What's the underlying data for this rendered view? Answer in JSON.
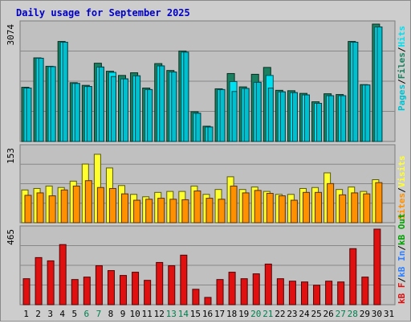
{
  "title": "Daily usage for September 2025",
  "colors": {
    "hits": "#00e0f0",
    "files": "#1a8060",
    "pages": "#00c0d0",
    "visits": "#ffff30",
    "sites": "#ff9000",
    "kbf": "#e01010",
    "kbin": "#3080ff",
    "kbout": "#00a000",
    "plot_bg": "#c0c0c0",
    "frame_bg": "#cdcdcd",
    "title": "#0000c8",
    "weekend_label": "#007f4f"
  },
  "chart_data": [
    {
      "type": "bar",
      "name": "hits-files-pages",
      "axis_max_label": "3074",
      "ylim": [
        0,
        3074
      ],
      "legend": [
        "Pages",
        "/",
        "Files",
        "/",
        "Hits"
      ],
      "categories": [
        "1",
        "2",
        "3",
        "4",
        "5",
        "6",
        "7",
        "8",
        "9",
        "10",
        "11",
        "12",
        "13",
        "14",
        "15",
        "16",
        "17",
        "18",
        "19",
        "20",
        "21",
        "22",
        "23",
        "24",
        "25",
        "26",
        "27",
        "28",
        "29",
        "30",
        "31"
      ],
      "series": [
        {
          "name": "Hits",
          "values": [
            1400,
            2180,
            1960,
            2600,
            1520,
            1440,
            1950,
            1810,
            1640,
            1720,
            1360,
            1980,
            1820,
            2340,
            740,
            380,
            1360,
            1570,
            1390,
            1550,
            1730,
            1300,
            1280,
            1220,
            1000,
            1200,
            1200,
            2600,
            1480,
            3000,
            0
          ]
        },
        {
          "name": "Files",
          "values": [
            1420,
            2190,
            1970,
            2620,
            1540,
            1470,
            2050,
            1840,
            1730,
            1800,
            1400,
            2040,
            1860,
            2370,
            780,
            400,
            1380,
            1780,
            1430,
            1760,
            1940,
            1340,
            1330,
            1260,
            1040,
            1250,
            1230,
            2620,
            1490,
            3074,
            0
          ]
        },
        {
          "name": "Pages",
          "values": [
            1400,
            2180,
            1960,
            2600,
            1520,
            1440,
            1950,
            1700,
            1640,
            1720,
            1360,
            1980,
            1820,
            2340,
            740,
            380,
            1360,
            1310,
            1390,
            1550,
            1400,
            1300,
            1280,
            1220,
            1000,
            1200,
            1200,
            2600,
            1480,
            3000,
            0
          ]
        }
      ]
    },
    {
      "type": "bar",
      "name": "visits-sites",
      "axis_max_label": "153",
      "ylim": [
        0,
        153
      ],
      "legend": [
        "Sites",
        "/",
        "Visits"
      ],
      "categories": [
        "1",
        "2",
        "3",
        "4",
        "5",
        "6",
        "7",
        "8",
        "9",
        "10",
        "11",
        "12",
        "13",
        "14",
        "15",
        "16",
        "17",
        "18",
        "19",
        "20",
        "21",
        "22",
        "23",
        "24",
        "25",
        "26",
        "27",
        "28",
        "29",
        "30",
        "31"
      ],
      "series": [
        {
          "name": "Visits",
          "values": [
            67,
            70,
            75,
            72,
            85,
            120,
            140,
            112,
            76,
            58,
            53,
            62,
            64,
            64,
            75,
            58,
            68,
            94,
            68,
            73,
            64,
            58,
            58,
            70,
            72,
            102,
            68,
            73,
            64,
            88,
            0
          ]
        },
        {
          "name": "Sites",
          "values": [
            56,
            61,
            55,
            67,
            75,
            86,
            72,
            70,
            59,
            46,
            48,
            50,
            48,
            47,
            65,
            50,
            48,
            75,
            61,
            66,
            60,
            55,
            46,
            62,
            62,
            80,
            57,
            61,
            59,
            82,
            0
          ]
        }
      ]
    },
    {
      "type": "bar",
      "name": "kbf",
      "axis_max_label": "465",
      "ylim": [
        0,
        465
      ],
      "legend": [
        "kB F",
        "/",
        "kB In",
        "/",
        "kB Out"
      ],
      "categories": [
        "1",
        "2",
        "3",
        "4",
        "5",
        "6",
        "7",
        "8",
        "9",
        "10",
        "11",
        "12",
        "13",
        "14",
        "15",
        "16",
        "17",
        "18",
        "19",
        "20",
        "21",
        "22",
        "23",
        "24",
        "25",
        "26",
        "27",
        "28",
        "29",
        "30",
        "31"
      ],
      "series": [
        {
          "name": "kB F",
          "values": [
            160,
            290,
            270,
            370,
            155,
            170,
            240,
            210,
            180,
            200,
            150,
            260,
            240,
            305,
            95,
            45,
            155,
            200,
            160,
            190,
            250,
            160,
            145,
            140,
            120,
            145,
            140,
            345,
            170,
            465,
            0
          ]
        }
      ]
    }
  ],
  "weekend_days": [
    6,
    7,
    13,
    14,
    20,
    21,
    27,
    28
  ]
}
